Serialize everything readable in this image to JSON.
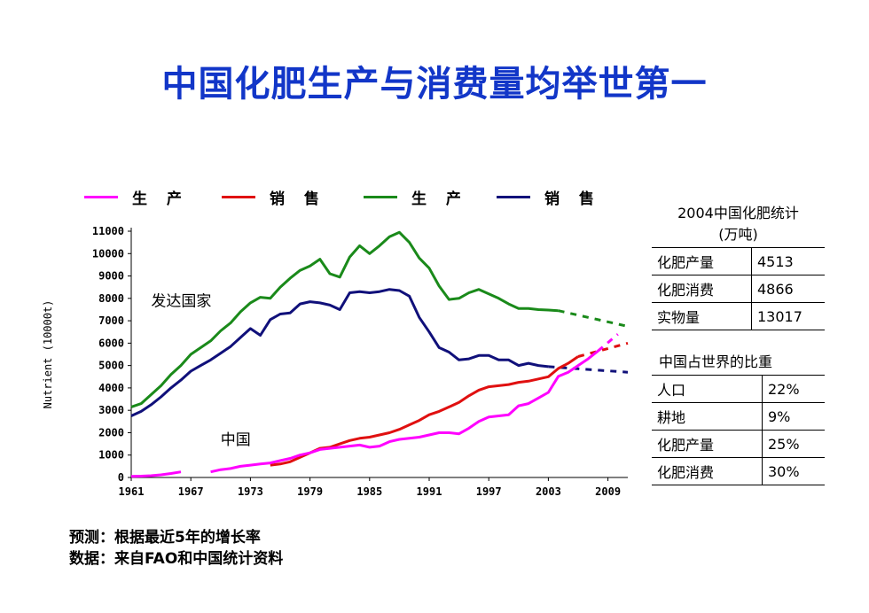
{
  "title": "中国化肥生产与消费量均举世第一",
  "legend": [
    {
      "label": "生 产",
      "color": "#ff00ff"
    },
    {
      "label": "销 售",
      "color": "#e01010"
    },
    {
      "label": "生 产",
      "color": "#1a8a1a"
    },
    {
      "label": "销 售",
      "color": "#10107a"
    }
  ],
  "notes": {
    "line1": "预测：根据最近5年的增长率",
    "line2": "数据：来自FAO和中国统计资料"
  },
  "table1": {
    "title": "2004中国化肥统计",
    "subtitle": "(万吨)",
    "rows": [
      {
        "label": "化肥产量",
        "value": "4513"
      },
      {
        "label": "化肥消费",
        "value": "4866"
      },
      {
        "label": "实物量",
        "value": "13017"
      }
    ]
  },
  "table2": {
    "title": "中国占世界的比重",
    "rows": [
      {
        "label": "人口",
        "value": "22%"
      },
      {
        "label": "耕地",
        "value": "9%"
      },
      {
        "label": "化肥产量",
        "value": "25%"
      },
      {
        "label": "化肥消费",
        "value": "30%"
      }
    ]
  },
  "chart_data": {
    "type": "line",
    "ylabel": "Nutrient (10000t)",
    "ylim": [
      0,
      11000
    ],
    "xlim": [
      1961,
      2011
    ],
    "xticks": [
      "1961",
      "1967",
      "1973",
      "1979",
      "1985",
      "1991",
      "1997",
      "2003",
      "2009"
    ],
    "yticks": [
      "0",
      "1000",
      "2000",
      "3000",
      "4000",
      "5000",
      "6000",
      "7000",
      "8000",
      "9000",
      "10000",
      "11000"
    ],
    "annotations": [
      {
        "text": "发达国家",
        "x": 1963,
        "y": 7900
      },
      {
        "text": "中国",
        "x": 1970,
        "y": 1700
      }
    ],
    "series": [
      {
        "id": "dev_production",
        "color": "#1a8a1a",
        "x": [
          1961,
          1962,
          1963,
          1964,
          1965,
          1966,
          1967,
          1968,
          1969,
          1970,
          1971,
          1972,
          1973,
          1974,
          1975,
          1976,
          1977,
          1978,
          1979,
          1980,
          1981,
          1982,
          1983,
          1984,
          1985,
          1986,
          1987,
          1988,
          1989,
          1990,
          1991,
          1992,
          1993,
          1994,
          1995,
          1996,
          1997,
          1998,
          1999,
          2000,
          2001,
          2002,
          2003,
          2004
        ],
        "y": [
          3150,
          3300,
          3700,
          4100,
          4600,
          5000,
          5500,
          5800,
          6100,
          6550,
          6900,
          7400,
          7800,
          8050,
          8000,
          8500,
          8900,
          9250,
          9450,
          9750,
          9100,
          8950,
          9850,
          10350,
          10000,
          10350,
          10750,
          10950,
          10500,
          9800,
          9350,
          8550,
          7950,
          8000,
          8250,
          8400,
          8200,
          8000,
          7750,
          7550,
          7550,
          7500,
          7480,
          7450
        ],
        "forecast": {
          "x": [
            2004,
            2011
          ],
          "y": [
            7450,
            6750
          ]
        }
      },
      {
        "id": "dev_sales",
        "color": "#10107a",
        "x": [
          1961,
          1962,
          1963,
          1964,
          1965,
          1966,
          1967,
          1968,
          1969,
          1970,
          1971,
          1972,
          1973,
          1974,
          1975,
          1976,
          1977,
          1978,
          1979,
          1980,
          1981,
          1982,
          1983,
          1984,
          1985,
          1986,
          1987,
          1988,
          1989,
          1990,
          1991,
          1992,
          1993,
          1994,
          1995,
          1996,
          1997,
          1998,
          1999,
          2000,
          2001,
          2002,
          2003
        ],
        "y": [
          2750,
          2950,
          3250,
          3600,
          4000,
          4350,
          4750,
          5000,
          5250,
          5550,
          5850,
          6250,
          6650,
          6350,
          7050,
          7300,
          7350,
          7750,
          7850,
          7800,
          7700,
          7500,
          8250,
          8300,
          8250,
          8300,
          8400,
          8350,
          8100,
          7150,
          6500,
          5800,
          5600,
          5250,
          5300,
          5450,
          5450,
          5250,
          5250,
          5000,
          5100,
          5000,
          4950
        ],
        "forecast": {
          "x": [
            2003,
            2011
          ],
          "y": [
            4950,
            4700
          ]
        }
      },
      {
        "id": "cn_sales",
        "color": "#e01010",
        "x": [
          1975,
          1976,
          1977,
          1978,
          1979,
          1980,
          1981,
          1982,
          1983,
          1984,
          1985,
          1986,
          1987,
          1988,
          1989,
          1990,
          1991,
          1992,
          1993,
          1994,
          1995,
          1996,
          1997,
          1998,
          1999,
          2000,
          2001,
          2002,
          2003,
          2004,
          2005,
          2006
        ],
        "y": [
          550,
          600,
          700,
          900,
          1100,
          1300,
          1350,
          1500,
          1650,
          1750,
          1800,
          1900,
          2000,
          2150,
          2350,
          2550,
          2800,
          2950,
          3150,
          3350,
          3650,
          3900,
          4050,
          4100,
          4150,
          4250,
          4300,
          4400,
          4500,
          4866,
          5100,
          5400
        ],
        "forecast": {
          "x": [
            2006,
            2011
          ],
          "y": [
            5400,
            6000
          ]
        }
      },
      {
        "id": "cn_production",
        "color": "#ff00ff",
        "segments": [
          {
            "x": [
              1961,
              1962,
              1963,
              1964,
              1965,
              1966
            ],
            "y": [
              50,
              60,
              80,
              120,
              180,
              250
            ]
          },
          {
            "x": [
              1969,
              1970,
              1971,
              1972,
              1973,
              1974,
              1975,
              1976,
              1977,
              1978,
              1979,
              1980,
              1981,
              1982,
              1983,
              1984,
              1985,
              1986,
              1987,
              1988,
              1989,
              1990,
              1991,
              1992,
              1993,
              1994,
              1995,
              1996,
              1997,
              1998,
              1999,
              2000,
              2001,
              2002,
              2003,
              2004,
              2005,
              2006,
              2007,
              2008
            ],
            "y": [
              250,
              350,
              400,
              500,
              550,
              600,
              650,
              750,
              850,
              1000,
              1100,
              1250,
              1300,
              1350,
              1400,
              1450,
              1350,
              1400,
              1600,
              1700,
              1750,
              1800,
              1900,
              2000,
              2000,
              1950,
              2200,
              2500,
              2700,
              2750,
              2800,
              3200,
              3300,
              3550,
              3800,
              4513,
              4700,
              5000,
              5300,
              5650
            ]
          }
        ],
        "forecast": {
          "x": [
            2008,
            2010
          ],
          "y": [
            5650,
            6400
          ]
        }
      }
    ]
  }
}
